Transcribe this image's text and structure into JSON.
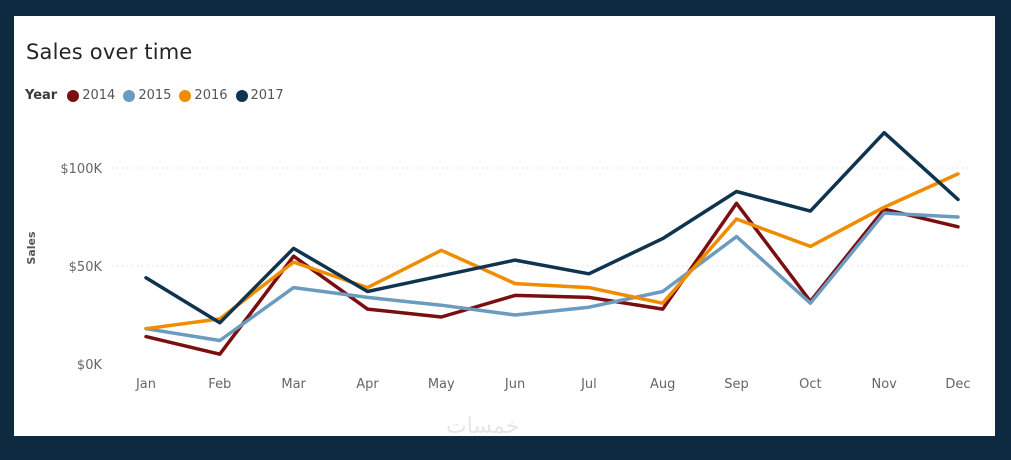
{
  "chart_data": {
    "type": "line",
    "title": "Sales over time",
    "legend_title": "Year",
    "legend_position": "top-left",
    "ylabel": "Sales",
    "xlabel": "",
    "ylim": [
      0,
      120000
    ],
    "y_ticks": [
      0,
      50000,
      100000
    ],
    "y_tick_labels": [
      "$0K",
      "$50K",
      "$100K"
    ],
    "grid": "horizontal-dotted",
    "categories": [
      "Jan",
      "Feb",
      "Mar",
      "Apr",
      "May",
      "Jun",
      "Jul",
      "Aug",
      "Sep",
      "Oct",
      "Nov",
      "Dec"
    ],
    "series": [
      {
        "name": "2014",
        "color": "#7a0f12",
        "values": [
          14000,
          5000,
          55000,
          28000,
          24000,
          35000,
          34000,
          28000,
          82000,
          32000,
          79000,
          70000
        ]
      },
      {
        "name": "2015",
        "color": "#6b9bbf",
        "values": [
          18000,
          12000,
          39000,
          34000,
          30000,
          25000,
          29000,
          37000,
          65000,
          31000,
          77000,
          75000
        ]
      },
      {
        "name": "2016",
        "color": "#f08c00",
        "values": [
          18000,
          23000,
          52000,
          39000,
          58000,
          41000,
          39000,
          31000,
          74000,
          60000,
          80000,
          97000
        ]
      },
      {
        "name": "2017",
        "color": "#0f3450",
        "values": [
          44000,
          21000,
          59000,
          37000,
          45000,
          53000,
          46000,
          64000,
          88000,
          78000,
          118000,
          84000
        ]
      }
    ]
  },
  "watermark": "خمسات"
}
